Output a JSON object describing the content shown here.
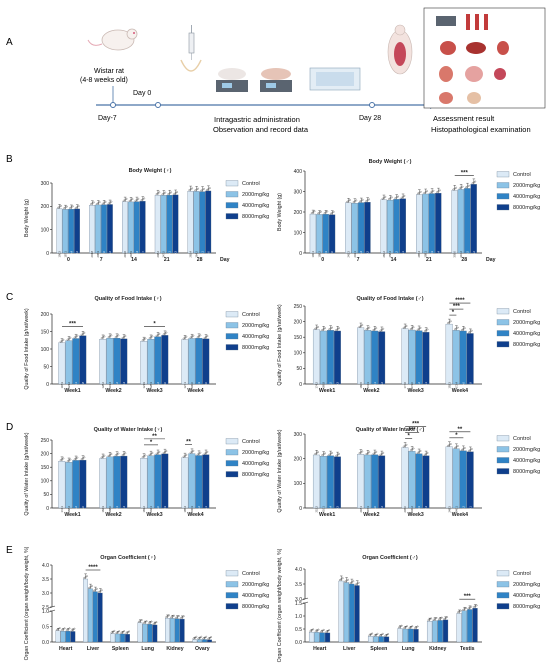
{
  "panel_a": {
    "label": "A",
    "rat_label_line1": "Wistar rat",
    "rat_label_line2": "(4-8 weeks old)",
    "day0": "Day 0",
    "day_minus7": "Day-7",
    "admin_line1": "Intragastric administration",
    "admin_line2": "Observation and record data",
    "day28": "Day 28",
    "result_line1": "Assessment result",
    "result_line2": "Histopathological examination"
  },
  "legend": [
    "Control",
    "2000mg/kg",
    "4000mg/kg",
    "8000mg/kg"
  ],
  "colors": [
    "#dceaf6",
    "#8cc3e6",
    "#2f83c5",
    "#0f3f8c"
  ],
  "chart_data": [
    {
      "id": "bw_f",
      "panel": "B",
      "type": "bar",
      "title": "Body Weight (♀)",
      "ylabel": "Body Weight (g)",
      "xlabel_suffix": "Day",
      "categories": [
        "0",
        "7",
        "14",
        "21",
        "28"
      ],
      "ylim": [
        0,
        300
      ],
      "yticks": [
        0,
        100,
        200,
        300
      ],
      "series": [
        {
          "name": "Control",
          "values": [
            190,
            205,
            220,
            248,
            265
          ]
        },
        {
          "name": "2000mg/kg",
          "values": [
            187,
            206,
            219,
            247,
            264
          ]
        },
        {
          "name": "4000mg/kg",
          "values": [
            188,
            207,
            220,
            248,
            263
          ]
        },
        {
          "name": "8000mg/kg",
          "values": [
            189,
            208,
            222,
            249,
            266
          ]
        }
      ],
      "bar_labels": [
        [
          "190.3",
          "204.8",
          "219.6",
          "248.2",
          "265.4"
        ],
        [
          "187.1",
          "206.3",
          "218.9",
          "247.5",
          "264.2"
        ],
        [
          "188.4",
          "207.0",
          "220.4",
          "248.1",
          "263.1"
        ],
        [
          "189.2",
          "208.2",
          "221.7",
          "249.3",
          "266.0"
        ]
      ],
      "significance": []
    },
    {
      "id": "bw_m",
      "panel": "B",
      "type": "bar",
      "title": "Body Weight (♂)",
      "ylabel": "Body Weight (g)",
      "xlabel_suffix": "Day",
      "categories": [
        "0",
        "7",
        "14",
        "21",
        "28"
      ],
      "ylim": [
        0,
        400
      ],
      "yticks": [
        0,
        100,
        200,
        300,
        400
      ],
      "series": [
        {
          "name": "Control",
          "values": [
            190,
            245,
            260,
            285,
            305
          ]
        },
        {
          "name": "2000mg/kg",
          "values": [
            188,
            243,
            258,
            288,
            310
          ]
        },
        {
          "name": "4000mg/kg",
          "values": [
            189,
            246,
            262,
            290,
            315
          ]
        },
        {
          "name": "8000mg/kg",
          "values": [
            187,
            248,
            265,
            292,
            335
          ]
        }
      ],
      "bar_labels": [
        [
          "190.1",
          "245.3",
          "260.2",
          "285.4",
          "305.0"
        ],
        [
          "188.2",
          "243.1",
          "258.4",
          "288.1",
          "310.2"
        ],
        [
          "189.3",
          "246.4",
          "262.2",
          "290.3",
          "315.5"
        ],
        [
          "187.0",
          "248.2",
          "265.1",
          "292.4",
          "335.2"
        ]
      ],
      "significance": [
        {
          "from_series": 0,
          "to_series": 3,
          "cat": 4,
          "label": "***"
        }
      ]
    },
    {
      "id": "food_f",
      "panel": "C",
      "type": "bar",
      "title": "Quality of Food Intake (♀)",
      "ylabel": "Quality of Food Intake (g/rat/week)",
      "xlabel_suffix": "",
      "categories": [
        "Week1",
        "Week2",
        "Week3",
        "Week4"
      ],
      "ylim": [
        0,
        200
      ],
      "yticks": [
        0,
        50,
        100,
        150,
        200
      ],
      "series": [
        {
          "name": "Control",
          "values": [
            118,
            128,
            122,
            127
          ]
        },
        {
          "name": "2000mg/kg",
          "values": [
            124,
            131,
            128,
            130
          ]
        },
        {
          "name": "4000mg/kg",
          "values": [
            130,
            131,
            135,
            131
          ]
        },
        {
          "name": "8000mg/kg",
          "values": [
            138,
            129,
            139,
            129
          ]
        }
      ],
      "bar_labels": [
        [
          "118.3",
          "128.2",
          "121.9",
          "127.1"
        ],
        [
          "124.2",
          "131.4",
          "128.3",
          "130.0"
        ],
        [
          "130.1",
          "131.2",
          "135.2",
          "131.3"
        ],
        [
          "137.8",
          "129.4",
          "139.0",
          "129.0"
        ]
      ],
      "significance": [
        {
          "from_series": 0,
          "to_series": 3,
          "cat": 0,
          "label": "***"
        },
        {
          "from_series": 0,
          "to_series": 3,
          "cat": 2,
          "label": "*"
        }
      ]
    },
    {
      "id": "food_m",
      "panel": "C",
      "type": "bar",
      "title": "Quality of Food Intake (♂)",
      "ylabel": "Quality of Food Intake (g/rat/week)",
      "xlabel_suffix": "",
      "categories": [
        "Week1",
        "Week2",
        "Week3",
        "Week4"
      ],
      "ylim": [
        0,
        250
      ],
      "yticks": [
        0,
        50,
        100,
        150,
        200,
        250
      ],
      "series": [
        {
          "name": "Control",
          "values": [
            174,
            180,
            177,
            192
          ]
        },
        {
          "name": "2000mg/kg",
          "values": [
            170,
            172,
            173,
            172
          ]
        },
        {
          "name": "4000mg/kg",
          "values": [
            172,
            170,
            171,
            170
          ]
        },
        {
          "name": "8000mg/kg",
          "values": [
            170,
            168,
            166,
            162
          ]
        }
      ],
      "bar_labels": [
        [
          "174.2",
          "180.5",
          "177.6",
          "192.3"
        ],
        [
          "169.8",
          "172.3",
          "173.0",
          "172.4"
        ],
        [
          "171.5",
          "170.1",
          "171.2",
          "170.0"
        ],
        [
          "170.3",
          "168.2",
          "166.1",
          "161.9"
        ]
      ],
      "significance": [
        {
          "from_series": 0,
          "to_series": 1,
          "cat": 3,
          "label": "*"
        },
        {
          "from_series": 0,
          "to_series": 2,
          "cat": 3,
          "label": "***"
        },
        {
          "from_series": 0,
          "to_series": 3,
          "cat": 3,
          "label": "****"
        }
      ]
    },
    {
      "id": "water_f",
      "panel": "D",
      "type": "bar",
      "title": "Quality of Water Intake (♀)",
      "ylabel": "Quality of Water Intake (g/rat/week)",
      "xlabel_suffix": "",
      "categories": [
        "Week1",
        "Week2",
        "Week3",
        "Week4"
      ],
      "ylim": [
        0,
        250
      ],
      "yticks": [
        0,
        50,
        100,
        150,
        200,
        250
      ],
      "series": [
        {
          "name": "Control",
          "values": [
            172,
            182,
            183,
            185
          ]
        },
        {
          "name": "2000mg/kg",
          "values": [
            168,
            188,
            192,
            200
          ]
        },
        {
          "name": "4000mg/kg",
          "values": [
            175,
            190,
            196,
            193
          ]
        },
        {
          "name": "8000mg/kg",
          "values": [
            176,
            191,
            199,
            196
          ]
        }
      ],
      "bar_labels": [
        [
          "172.1",
          "182.3",
          "183.2",
          "185.4"
        ],
        [
          "168.4",
          "188.0",
          "192.1",
          "200.3"
        ],
        [
          "175.2",
          "190.1",
          "196.0",
          "193.2"
        ],
        [
          "176.0",
          "191.4",
          "199.3",
          "196.1"
        ]
      ],
      "significance": [
        {
          "from_series": 0,
          "to_series": 2,
          "cat": 2,
          "label": "*"
        },
        {
          "from_series": 0,
          "to_series": 3,
          "cat": 2,
          "label": "**"
        },
        {
          "from_series": 0,
          "to_series": 1,
          "cat": 3,
          "label": "**"
        }
      ]
    },
    {
      "id": "water_m",
      "panel": "D",
      "type": "bar",
      "title": "Quality of Water Intake (♂)",
      "ylabel": "Quality of Water Intake (g/rat/week)",
      "xlabel_suffix": "",
      "categories": [
        "Week1",
        "Week2",
        "Week3",
        "Week4"
      ],
      "ylim": [
        0,
        300
      ],
      "yticks": [
        0,
        100,
        200,
        300
      ],
      "series": [
        {
          "name": "Control",
          "values": [
            215,
            218,
            245,
            248
          ]
        },
        {
          "name": "2000mg/kg",
          "values": [
            210,
            215,
            230,
            240
          ]
        },
        {
          "name": "4000mg/kg",
          "values": [
            212,
            216,
            220,
            232
          ]
        },
        {
          "name": "8000mg/kg",
          "values": [
            208,
            212,
            212,
            228
          ]
        }
      ],
      "bar_labels": [
        [
          "215.2",
          "218.1",
          "245.0",
          "248.3"
        ],
        [
          "210.1",
          "215.3",
          "230.2",
          "240.1"
        ],
        [
          "212.4",
          "216.0",
          "220.3",
          "232.2"
        ],
        [
          "208.3",
          "212.2",
          "212.4",
          "228.1"
        ]
      ],
      "significance": [
        {
          "from_series": 0,
          "to_series": 1,
          "cat": 2,
          "label": "*"
        },
        {
          "from_series": 0,
          "to_series": 2,
          "cat": 2,
          "label": "***"
        },
        {
          "from_series": 0,
          "to_series": 3,
          "cat": 2,
          "label": "***"
        },
        {
          "from_series": 0,
          "to_series": 2,
          "cat": 3,
          "label": "*"
        },
        {
          "from_series": 0,
          "to_series": 3,
          "cat": 3,
          "label": "**"
        }
      ]
    },
    {
      "id": "organ_f",
      "panel": "E",
      "type": "bar",
      "title": "Organ Coefficient (♀)",
      "ylabel": "Organ Coefficient (organ weight/body weight, %)",
      "xlabel_suffix": "",
      "categories": [
        "Heart",
        "Liver",
        "Spleen",
        "Lung",
        "Kidney",
        "Ovary"
      ],
      "broken_axis": {
        "lower": [
          0,
          1.0
        ],
        "upper": [
          2.5,
          4.0
        ]
      },
      "yticks_lower": [
        0.0,
        0.5,
        1.0
      ],
      "yticks_upper": [
        2.5,
        3.0,
        3.5,
        4.0
      ],
      "series": [
        {
          "name": "Control",
          "values": [
            0.36,
            3.5,
            0.27,
            0.62,
            0.77,
            0.08
          ]
        },
        {
          "name": "2000mg/kg",
          "values": [
            0.35,
            3.15,
            0.26,
            0.58,
            0.76,
            0.08
          ]
        },
        {
          "name": "4000mg/kg",
          "values": [
            0.35,
            3.05,
            0.26,
            0.57,
            0.75,
            0.08
          ]
        },
        {
          "name": "8000mg/kg",
          "values": [
            0.34,
            3.0,
            0.25,
            0.55,
            0.74,
            0.07
          ]
        }
      ],
      "significance": [
        {
          "from_series": 0,
          "to_series": 3,
          "cat": 1,
          "label": "****"
        }
      ]
    },
    {
      "id": "organ_m",
      "panel": "E",
      "type": "bar",
      "title": "Organ Coefficient (♂)",
      "ylabel": "Organ Coefficient (organ weight/body weight, %)",
      "xlabel_suffix": "",
      "categories": [
        "Heart",
        "Liver",
        "Spleen",
        "Lung",
        "Kidney",
        "Testis"
      ],
      "broken_axis": {
        "lower": [
          0,
          1.5
        ],
        "upper": [
          3.0,
          4.0
        ]
      },
      "yticks_lower": [
        0.0,
        0.5,
        1.0,
        1.5
      ],
      "yticks_upper": [
        3.0,
        3.5,
        4.0
      ],
      "series": [
        {
          "name": "Control",
          "values": [
            0.38,
            3.6,
            0.22,
            0.52,
            0.8,
            1.1
          ]
        },
        {
          "name": "2000mg/kg",
          "values": [
            0.37,
            3.55,
            0.21,
            0.5,
            0.82,
            1.2
          ]
        },
        {
          "name": "4000mg/kg",
          "values": [
            0.36,
            3.5,
            0.21,
            0.5,
            0.83,
            1.25
          ]
        },
        {
          "name": "8000mg/kg",
          "values": [
            0.35,
            3.45,
            0.2,
            0.49,
            0.85,
            1.3
          ]
        }
      ],
      "significance": [
        {
          "from_series": 0,
          "to_series": 3,
          "cat": 5,
          "label": "***"
        }
      ]
    }
  ]
}
